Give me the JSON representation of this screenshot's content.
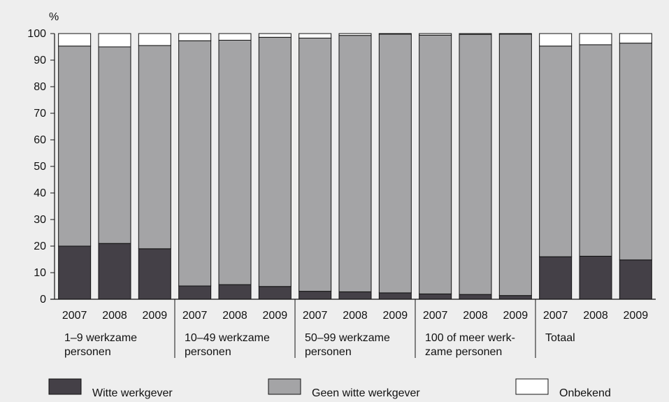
{
  "chart_data": {
    "type": "bar",
    "stacked": true,
    "ylabel": "%",
    "ylim": [
      0,
      100
    ],
    "yticks": [
      0,
      10,
      20,
      30,
      40,
      50,
      60,
      70,
      80,
      90,
      100
    ],
    "grid": false,
    "legend_position": "bottom",
    "groups": [
      {
        "label_lines": [
          "1–9 werkzame",
          "personen"
        ],
        "categories": [
          "2007",
          "2008",
          "2009"
        ]
      },
      {
        "label_lines": [
          "10–49 werkzame",
          "personen"
        ],
        "categories": [
          "2007",
          "2008",
          "2009"
        ]
      },
      {
        "label_lines": [
          "50–99 werkzame",
          "personen"
        ],
        "categories": [
          "2007",
          "2008",
          "2009"
        ]
      },
      {
        "label_lines": [
          "100 of meer werk-",
          "zame personen"
        ],
        "categories": [
          "2007",
          "2008",
          "2009"
        ]
      },
      {
        "label_lines": [
          "Totaal"
        ],
        "categories": [
          "2007",
          "2008",
          "2009"
        ]
      }
    ],
    "series": [
      {
        "name": "Witte werkgever",
        "color": "#444047",
        "values": [
          20.0,
          21.0,
          19.0,
          5.0,
          5.5,
          4.8,
          3.0,
          2.8,
          2.4,
          2.0,
          1.8,
          1.4,
          16.0,
          16.2,
          14.8
        ]
      },
      {
        "name": "Geen witte werkgever",
        "color": "#a4a4a6",
        "values": [
          75.3,
          74.0,
          76.5,
          92.3,
          92.0,
          93.8,
          95.3,
          96.5,
          97.4,
          97.4,
          97.9,
          98.4,
          79.3,
          79.6,
          81.6
        ]
      },
      {
        "name": "Onbekend",
        "color": "#ffffff",
        "values": [
          4.7,
          5.0,
          4.5,
          2.7,
          2.5,
          1.4,
          1.7,
          0.7,
          0.2,
          0.6,
          0.3,
          0.2,
          4.7,
          4.2,
          3.6
        ]
      }
    ]
  }
}
